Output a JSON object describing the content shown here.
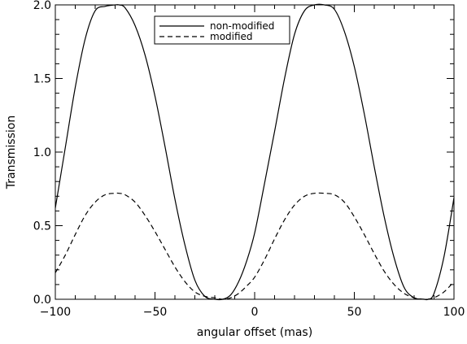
{
  "chart_data": {
    "type": "line",
    "title": "",
    "xlabel": "angular offset (mas)",
    "ylabel": "Transmission",
    "xlim": [
      -100,
      100
    ],
    "ylim": [
      0.0,
      2.0
    ],
    "x_ticks": [
      -100,
      -50,
      0,
      50,
      100
    ],
    "x_tick_labels": [
      "−100",
      "−50",
      "0",
      "50",
      "100"
    ],
    "y_ticks": [
      0.0,
      0.5,
      1.0,
      1.5,
      2.0
    ],
    "y_tick_labels": [
      "0.0",
      "0.5",
      "1.0",
      "1.5",
      "2.0"
    ],
    "grid": false,
    "legend_position": "top-center",
    "x": [
      -100,
      -95,
      -90,
      -85,
      -80,
      -75,
      -70,
      -68,
      -65,
      -60,
      -55,
      -50,
      -45,
      -40,
      -35,
      -30,
      -25,
      -20,
      -16,
      -12,
      -8,
      -4,
      0,
      5,
      10,
      15,
      20,
      25,
      30,
      35,
      40,
      45,
      50,
      55,
      60,
      65,
      70,
      75,
      80,
      85,
      87,
      90,
      95,
      100
    ],
    "series": [
      {
        "name": "non-modified",
        "style": "solid",
        "color": "#000000",
        "values": [
          0.62,
          1.03,
          1.44,
          1.77,
          1.96,
          1.99,
          2.0,
          2.0,
          1.98,
          1.86,
          1.66,
          1.38,
          1.04,
          0.68,
          0.37,
          0.13,
          0.02,
          0.0,
          0.0,
          0.03,
          0.12,
          0.26,
          0.45,
          0.79,
          1.14,
          1.5,
          1.8,
          1.96,
          2.0,
          2.0,
          1.97,
          1.82,
          1.58,
          1.26,
          0.9,
          0.56,
          0.28,
          0.08,
          0.01,
          0.0,
          0.0,
          0.04,
          0.29,
          0.69
        ]
      },
      {
        "name": "modified",
        "style": "dashed",
        "color": "#000000",
        "values": [
          0.18,
          0.3,
          0.44,
          0.57,
          0.66,
          0.71,
          0.72,
          0.72,
          0.71,
          0.66,
          0.57,
          0.46,
          0.34,
          0.22,
          0.12,
          0.05,
          0.02,
          0.01,
          0.0,
          0.01,
          0.04,
          0.09,
          0.15,
          0.27,
          0.41,
          0.54,
          0.64,
          0.7,
          0.72,
          0.72,
          0.71,
          0.66,
          0.56,
          0.44,
          0.31,
          0.19,
          0.1,
          0.04,
          0.01,
          0.0,
          0.0,
          0.01,
          0.05,
          0.12
        ]
      }
    ]
  }
}
